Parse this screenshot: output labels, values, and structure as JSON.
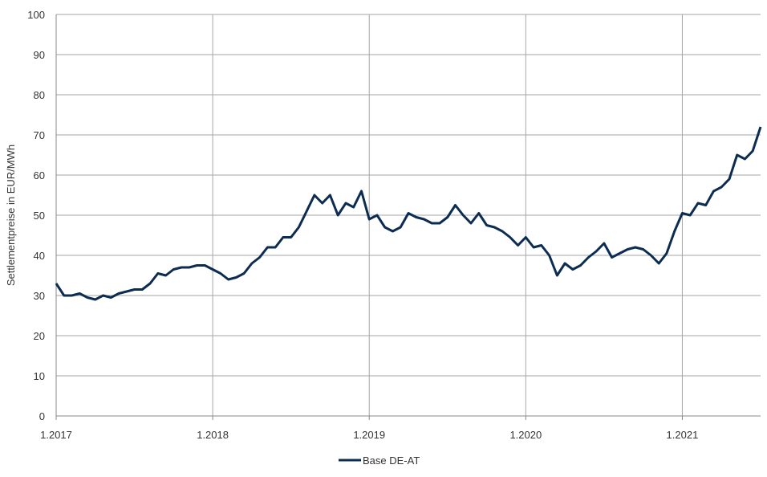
{
  "chart_data": {
    "type": "line",
    "y_label": "Settlementpreise in EUR/MWh",
    "x": [
      2017.0,
      2017.05,
      2017.1,
      2017.15,
      2017.2,
      2017.25,
      2017.3,
      2017.35,
      2017.4,
      2017.45,
      2017.5,
      2017.55,
      2017.6,
      2017.65,
      2017.7,
      2017.75,
      2017.8,
      2017.85,
      2017.9,
      2017.95,
      2018.0,
      2018.05,
      2018.1,
      2018.15,
      2018.2,
      2018.25,
      2018.3,
      2018.35,
      2018.4,
      2018.45,
      2018.5,
      2018.55,
      2018.6,
      2018.65,
      2018.7,
      2018.75,
      2018.8,
      2018.85,
      2018.9,
      2018.95,
      2019.0,
      2019.05,
      2019.1,
      2019.15,
      2019.2,
      2019.25,
      2019.3,
      2019.35,
      2019.4,
      2019.45,
      2019.5,
      2019.55,
      2019.6,
      2019.65,
      2019.7,
      2019.75,
      2019.8,
      2019.85,
      2019.9,
      2019.95,
      2020.0,
      2020.05,
      2020.1,
      2020.15,
      2020.2,
      2020.25,
      2020.3,
      2020.35,
      2020.4,
      2020.45,
      2020.5,
      2020.55,
      2020.6,
      2020.65,
      2020.7,
      2020.75,
      2020.8,
      2020.85,
      2020.9,
      2020.95,
      2021.0,
      2021.05,
      2021.1,
      2021.15,
      2021.2,
      2021.25,
      2021.3,
      2021.35,
      2021.4,
      2021.45,
      2021.5
    ],
    "series": [
      {
        "name": "Base DE-AT",
        "color": "#0c2c52",
        "values": [
          33,
          30,
          30,
          30.5,
          29.5,
          29,
          30,
          29.5,
          30.5,
          31,
          31.5,
          31.5,
          33,
          35.5,
          35,
          36.5,
          37,
          37,
          37.5,
          37.5,
          36.5,
          35.5,
          34,
          34.5,
          35.5,
          38,
          39.5,
          42,
          42,
          44.5,
          44.5,
          47,
          51,
          55,
          53,
          55,
          50,
          53,
          52,
          56,
          49,
          50,
          47,
          46,
          47,
          50.5,
          49.5,
          49,
          48,
          48,
          49.5,
          52.5,
          50,
          48,
          50.5,
          47.5,
          47,
          46,
          44.5,
          42.5,
          44.5,
          42,
          42.5,
          40,
          35,
          38,
          36.5,
          37.5,
          39.5,
          41,
          43,
          39.5,
          40.5,
          41.5,
          42,
          41.5,
          40,
          38,
          40.5,
          46,
          50.5,
          50,
          53,
          52.5,
          56,
          57,
          59,
          65,
          64,
          66,
          72
        ]
      }
    ],
    "xlim": [
      2017,
      2021.5
    ],
    "xticks": [
      {
        "value": 2017,
        "label": "1.2017"
      },
      {
        "value": 2018,
        "label": "1.2018"
      },
      {
        "value": 2019,
        "label": "1.2019"
      },
      {
        "value": 2020,
        "label": "1.2020"
      },
      {
        "value": 2021,
        "label": "1.2021"
      }
    ],
    "ylim": [
      0,
      100
    ],
    "yticks": [
      0,
      10,
      20,
      30,
      40,
      50,
      60,
      70,
      80,
      90,
      100
    ],
    "grid": true,
    "legend": "bottom"
  }
}
